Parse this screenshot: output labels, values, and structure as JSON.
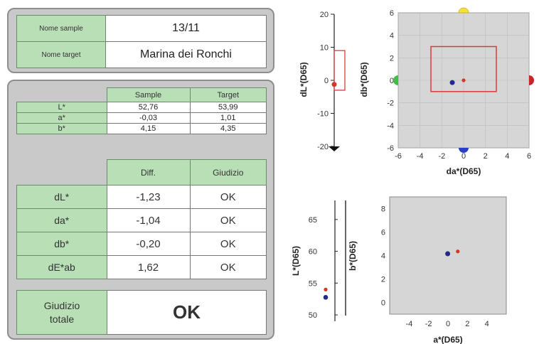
{
  "header": {
    "sample_label": "Nome sample",
    "sample_value": "13/11",
    "target_label": "Nome target",
    "target_value": "Marina dei Ronchi"
  },
  "lab_table": {
    "col_sample": "Sample",
    "col_target": "Target",
    "rows": [
      {
        "label": "L*",
        "sample": "52,76",
        "target": "53,99"
      },
      {
        "label": "a*",
        "sample": "-0,03",
        "target": "1,01"
      },
      {
        "label": "b*",
        "sample": "4,15",
        "target": "4,35"
      }
    ]
  },
  "diff_table": {
    "col_diff": "Diff.",
    "col_giudizio": "Giudizio",
    "rows": [
      {
        "label": "dL*",
        "diff": "-1,23",
        "giudizio": "OK"
      },
      {
        "label": "da*",
        "diff": "-1,04",
        "giudizio": "OK"
      },
      {
        "label": "db*",
        "diff": "-0,20",
        "giudizio": "OK"
      },
      {
        "label": "dE*ab",
        "diff": "1,62",
        "giudizio": "OK"
      }
    ]
  },
  "total": {
    "label_line1": "Giudizio",
    "label_line2": "totale",
    "value": "OK"
  },
  "charts": {
    "dl": {
      "ylabel": "dL*(D65)",
      "ticks": [
        "20",
        "10",
        "0",
        "-10",
        "-20"
      ],
      "tick_values": [
        20,
        10,
        0,
        -10,
        -20
      ],
      "ylim": [
        -20,
        20
      ],
      "tolerance": [
        -3,
        9
      ],
      "sample_value": -1.23
    },
    "dadb": {
      "xlabel": "da*(D65)",
      "ylabel": "db*(D65)",
      "xticks": [
        "-6",
        "-4",
        "-2",
        "0",
        "2",
        "4",
        "6"
      ],
      "yticks": [
        "6",
        "4",
        "2",
        "0",
        "-2",
        "-4",
        "-6"
      ],
      "tick_values": [
        -6,
        -4,
        -2,
        0,
        2,
        4,
        6
      ],
      "lim": [
        -6,
        6
      ],
      "tolerance": {
        "x": [
          -3,
          3
        ],
        "y": [
          -1,
          3
        ]
      },
      "sample": [
        -1.04,
        -0.2
      ],
      "target": [
        0,
        0
      ]
    },
    "l": {
      "ylabel": "L*(D65)",
      "ticks": [
        "65",
        "60",
        "55",
        "50"
      ],
      "tick_values": [
        65,
        60,
        55,
        50
      ],
      "ylim": [
        49,
        68
      ],
      "sample": 52.76,
      "target": 53.99
    },
    "ab": {
      "xlabel": "a*(D65)",
      "ylabel": "b*(D65)",
      "xticks": [
        "-4",
        "-2",
        "0",
        "2",
        "4"
      ],
      "xtick_values": [
        -4,
        -2,
        0,
        2,
        4
      ],
      "yticks": [
        "8",
        "6",
        "4",
        "2",
        "0"
      ],
      "ytick_values": [
        8,
        6,
        4,
        2,
        0
      ],
      "xlim": [
        -6,
        6
      ],
      "ylim": [
        -1,
        9
      ],
      "sample": [
        -0.03,
        4.15
      ],
      "target": [
        1.01,
        4.35
      ]
    }
  },
  "colors": {
    "sample": "#1f2a8c",
    "target": "#d0382a",
    "tolerance": "#d83a3a",
    "plot_bg": "#d6d6d6",
    "marker_yellow": "#f2e23a",
    "marker_green": "#3fbf45",
    "marker_red": "#c8242c",
    "marker_blue": "#2a3fc8"
  }
}
